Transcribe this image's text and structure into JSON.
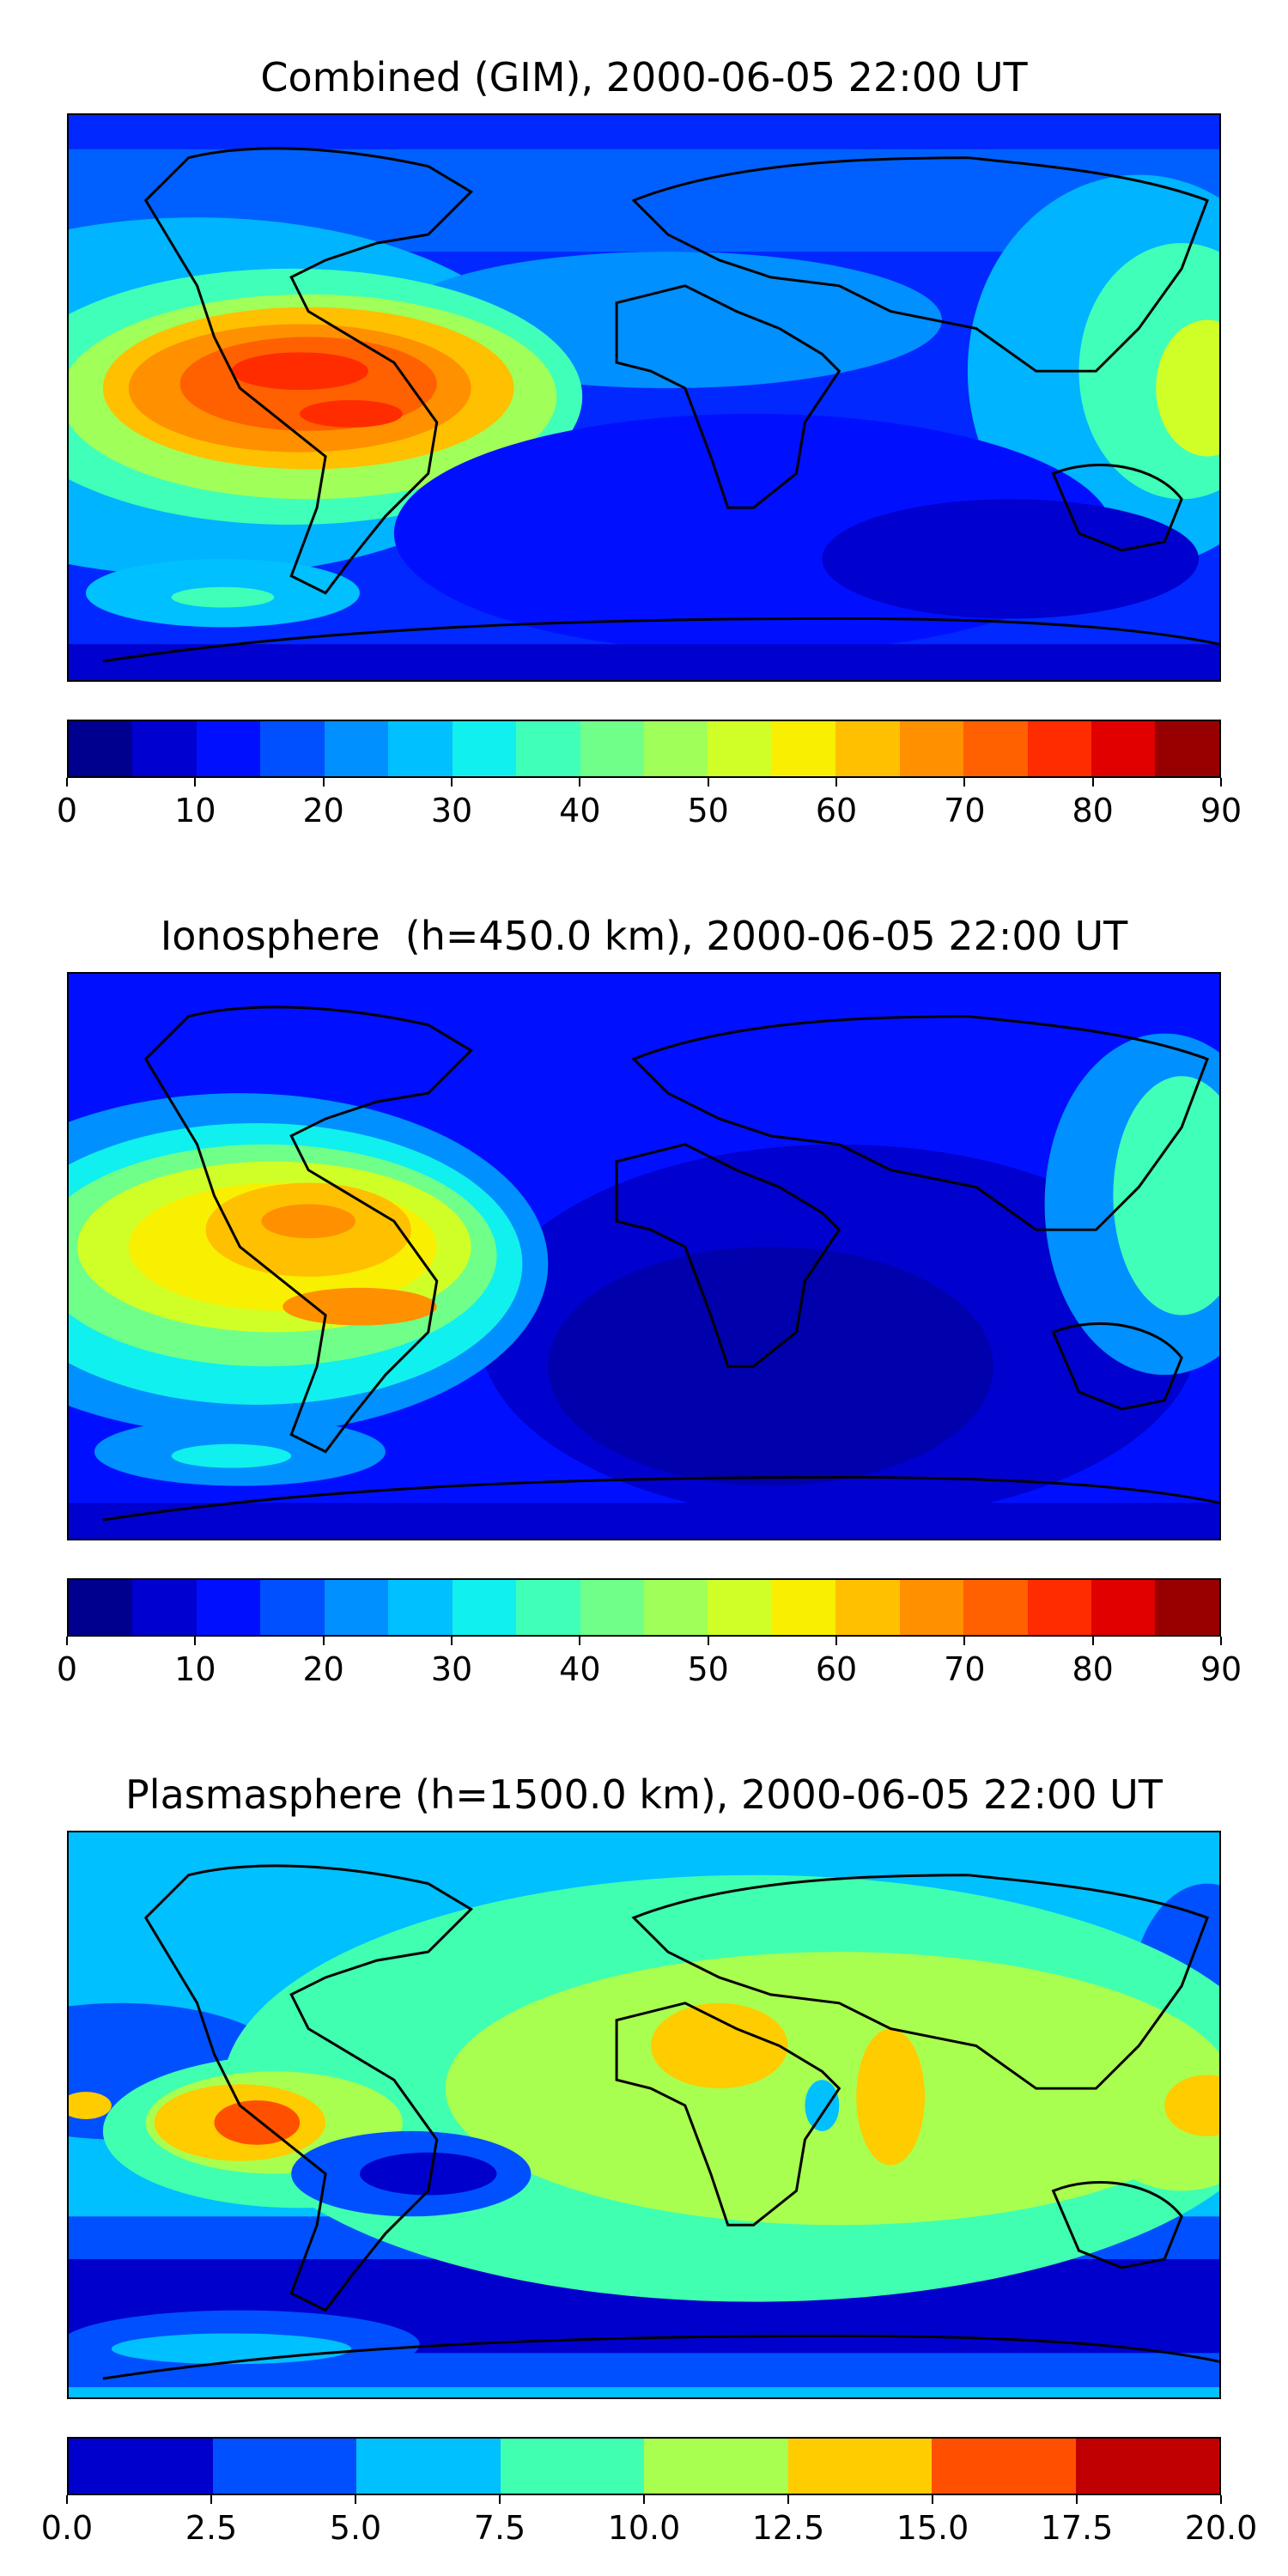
{
  "panels": [
    {
      "title": "Combined (GIM), 2000-06-05 22:00 UT",
      "map_kind": "combined",
      "colorbar": {
        "colors": [
          "#00008f",
          "#0000cf",
          "#0010ff",
          "#0050ff",
          "#0090ff",
          "#00c0ff",
          "#10f0ee",
          "#40ffb8",
          "#70ff88",
          "#a0ff58",
          "#d0ff28",
          "#f8f000",
          "#ffc000",
          "#ff9000",
          "#ff6000",
          "#ff2c00",
          "#e00000",
          "#980000"
        ],
        "tick_labels": [
          "0",
          "10",
          "20",
          "30",
          "40",
          "50",
          "60",
          "70",
          "80",
          "90"
        ]
      }
    },
    {
      "title": "Ionosphere  (h=450.0 km), 2000-06-05 22:00 UT",
      "map_kind": "ionosphere",
      "colorbar": {
        "colors": [
          "#00008f",
          "#0000cf",
          "#0010ff",
          "#0050ff",
          "#0090ff",
          "#00c0ff",
          "#10f0ee",
          "#40ffb8",
          "#70ff88",
          "#a0ff58",
          "#d0ff28",
          "#f8f000",
          "#ffc000",
          "#ff9000",
          "#ff6000",
          "#ff2c00",
          "#e00000",
          "#980000"
        ],
        "tick_labels": [
          "0",
          "10",
          "20",
          "30",
          "40",
          "50",
          "60",
          "70",
          "80",
          "90"
        ]
      }
    },
    {
      "title": "Plasmasphere (h=1500.0 km), 2000-06-05 22:00 UT",
      "map_kind": "plasmasphere",
      "colorbar": {
        "colors": [
          "#0000cd",
          "#0050ff",
          "#00c0ff",
          "#40ffb0",
          "#a8ff50",
          "#ffcc00",
          "#ff5000",
          "#c00000"
        ],
        "tick_labels": [
          "0.0",
          "2.5",
          "5.0",
          "7.5",
          "10.0",
          "12.5",
          "15.0",
          "17.5",
          "20.0"
        ]
      }
    }
  ]
}
